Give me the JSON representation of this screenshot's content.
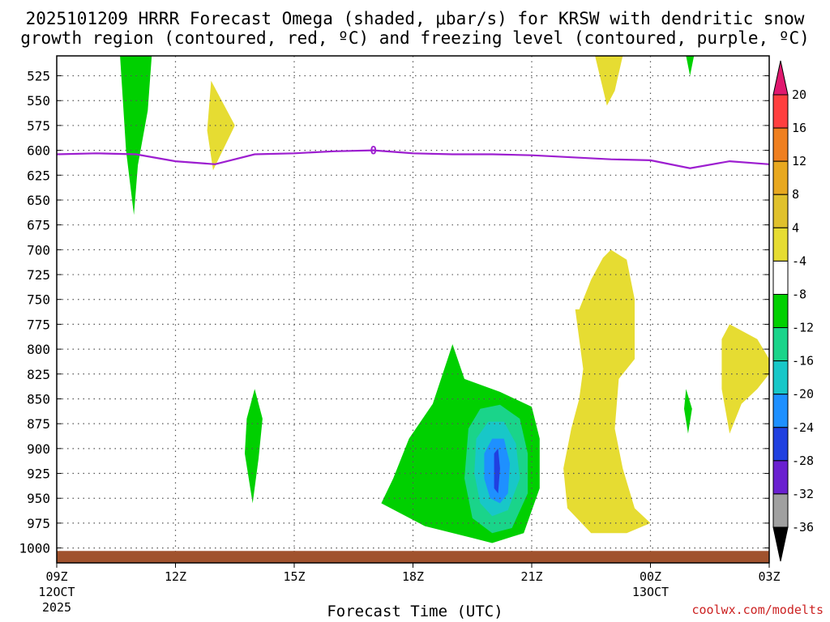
{
  "title": {
    "line1": "2025101209 HRRR Forecast Omega (shaded, μbar/s) for KRSW with dendritic snow",
    "line2": "growth region (contoured, red, ºC) and freezing level (contoured, purple, ºC)"
  },
  "x_axis_title": "Forecast Time (UTC)",
  "credit": "coolwx.com/modelts",
  "freezing_level_label": "0",
  "colors": {
    "freezing_line": "#9d1ed0",
    "ground": "#a0522d",
    "grid": "#555555"
  },
  "chart_data": {
    "type": "filled-contour",
    "title": "2025101209 HRRR Forecast Omega (shaded, μbar/s) for KRSW",
    "x_range_hours": [
      0,
      18
    ],
    "y_range_hpa": [
      505,
      1015
    ],
    "x_ticks": [
      {
        "hour": 0,
        "label": "09Z",
        "sub1": "12OCT",
        "sub2": "2025"
      },
      {
        "hour": 3,
        "label": "12Z",
        "sub1": "",
        "sub2": ""
      },
      {
        "hour": 6,
        "label": "15Z",
        "sub1": "",
        "sub2": ""
      },
      {
        "hour": 9,
        "label": "18Z",
        "sub1": "",
        "sub2": ""
      },
      {
        "hour": 12,
        "label": "21Z",
        "sub1": "",
        "sub2": ""
      },
      {
        "hour": 15,
        "label": "00Z",
        "sub1": "13OCT",
        "sub2": ""
      },
      {
        "hour": 18,
        "label": "03Z",
        "sub1": "",
        "sub2": ""
      }
    ],
    "y_ticks": [
      525,
      550,
      575,
      600,
      625,
      650,
      675,
      700,
      725,
      750,
      775,
      800,
      825,
      850,
      875,
      900,
      925,
      950,
      975,
      1000
    ],
    "colorbar": {
      "levels": [
        {
          "label": "20",
          "color": "#ff3f3f"
        },
        {
          "label": "16",
          "color": "#ef7f1f"
        },
        {
          "label": "12",
          "color": "#e8a81f"
        },
        {
          "label": "8",
          "color": "#e0c12c"
        },
        {
          "label": "4",
          "color": "#e6dc32"
        },
        {
          "label": "-4",
          "color": "#ffffff"
        },
        {
          "label": "-8",
          "color": "#00d000"
        },
        {
          "label": "-12",
          "color": "#1ad48a"
        },
        {
          "label": "-16",
          "color": "#18c7c8"
        },
        {
          "label": "-20",
          "color": "#1e90ff"
        },
        {
          "label": "-24",
          "color": "#2040e0"
        },
        {
          "label": "-28",
          "color": "#6a20d0"
        },
        {
          "label": "-32",
          "color": "#a010c0"
        },
        {
          "label": "-36",
          "color": "#a0a0a0"
        }
      ],
      "top_arrow_color": "#e0186e",
      "bottom_arrow_color": "#000000"
    },
    "freezing_level": {
      "label": "0",
      "points": [
        [
          0,
          604
        ],
        [
          1,
          603
        ],
        [
          2,
          604
        ],
        [
          3,
          611
        ],
        [
          4,
          614
        ],
        [
          5,
          604
        ],
        [
          6,
          603
        ],
        [
          7,
          601
        ],
        [
          8,
          600
        ],
        [
          9,
          603
        ],
        [
          10,
          604
        ],
        [
          11,
          604
        ],
        [
          12,
          605
        ],
        [
          13,
          607
        ],
        [
          14,
          609
        ],
        [
          15,
          610
        ],
        [
          16,
          618
        ],
        [
          17,
          611
        ],
        [
          18,
          614
        ]
      ]
    },
    "shaded_regions": [
      {
        "value_band": "-4 to -8",
        "color": "#00d000",
        "points": [
          [
            1.6,
            505
          ],
          [
            2.4,
            505
          ],
          [
            2.3,
            560
          ],
          [
            2.05,
            615
          ],
          [
            1.95,
            665
          ],
          [
            1.75,
            600
          ],
          [
            1.6,
            505
          ]
        ]
      },
      {
        "value_band": "4 to 8",
        "color": "#e6dc32",
        "points": [
          [
            3.9,
            530
          ],
          [
            4.5,
            575
          ],
          [
            3.95,
            620
          ],
          [
            3.8,
            580
          ],
          [
            3.9,
            530
          ]
        ]
      },
      {
        "value_band": "4 to 8",
        "color": "#e6dc32",
        "points": [
          [
            13.6,
            505
          ],
          [
            14.3,
            505
          ],
          [
            14.1,
            540
          ],
          [
            13.9,
            555
          ],
          [
            13.6,
            505
          ]
        ]
      },
      {
        "value_band": "-4 to -8",
        "color": "#00d000",
        "points": [
          [
            15.9,
            505
          ],
          [
            16.1,
            505
          ],
          [
            16.0,
            525
          ],
          [
            15.9,
            505
          ]
        ]
      },
      {
        "value_band": "-4 to -8",
        "color": "#00d000",
        "points": [
          [
            5.0,
            840
          ],
          [
            5.2,
            870
          ],
          [
            5.1,
            910
          ],
          [
            4.95,
            955
          ],
          [
            4.75,
            905
          ],
          [
            4.8,
            870
          ],
          [
            5.0,
            840
          ]
        ]
      },
      {
        "value_band": "-4 to -8",
        "color": "#00d000",
        "points": [
          [
            8.9,
            890
          ],
          [
            9.5,
            855
          ],
          [
            10.0,
            795
          ],
          [
            10.3,
            830
          ],
          [
            11.2,
            843
          ],
          [
            12.0,
            858
          ],
          [
            12.2,
            890
          ],
          [
            12.2,
            940
          ],
          [
            11.8,
            985
          ],
          [
            11.0,
            995
          ],
          [
            10.5,
            990
          ],
          [
            9.3,
            978
          ],
          [
            8.2,
            955
          ],
          [
            8.5,
            930
          ],
          [
            8.9,
            890
          ]
        ]
      },
      {
        "value_band": "-8 to -12",
        "color": "#1ad48a",
        "points": [
          [
            10.4,
            880
          ],
          [
            10.7,
            860
          ],
          [
            11.2,
            856
          ],
          [
            11.7,
            870
          ],
          [
            11.9,
            905
          ],
          [
            11.9,
            945
          ],
          [
            11.5,
            980
          ],
          [
            11.0,
            985
          ],
          [
            10.5,
            970
          ],
          [
            10.3,
            930
          ],
          [
            10.4,
            880
          ]
        ]
      },
      {
        "value_band": "-12 to -16",
        "color": "#18c7c8",
        "points": [
          [
            10.6,
            890
          ],
          [
            10.9,
            873
          ],
          [
            11.3,
            873
          ],
          [
            11.6,
            895
          ],
          [
            11.7,
            930
          ],
          [
            11.4,
            962
          ],
          [
            11.0,
            968
          ],
          [
            10.7,
            955
          ],
          [
            10.55,
            925
          ],
          [
            10.6,
            890
          ]
        ]
      },
      {
        "value_band": "-16 to -20",
        "color": "#1e90ff",
        "points": [
          [
            10.8,
            905
          ],
          [
            11.0,
            890
          ],
          [
            11.3,
            890
          ],
          [
            11.45,
            915
          ],
          [
            11.4,
            945
          ],
          [
            11.2,
            955
          ],
          [
            10.95,
            950
          ],
          [
            10.8,
            930
          ],
          [
            10.8,
            905
          ]
        ]
      },
      {
        "value_band": "-20 to -24",
        "color": "#2040e0",
        "points": [
          [
            11.05,
            905
          ],
          [
            11.15,
            900
          ],
          [
            11.2,
            920
          ],
          [
            11.15,
            945
          ],
          [
            11.05,
            940
          ],
          [
            11.05,
            905
          ]
        ]
      },
      {
        "value_band": "4 to 8",
        "color": "#e6dc32",
        "points": [
          [
            13.2,
            760
          ],
          [
            13.5,
            730
          ],
          [
            13.8,
            708
          ],
          [
            14.0,
            700
          ],
          [
            14.4,
            710
          ],
          [
            14.6,
            750
          ],
          [
            14.6,
            810
          ],
          [
            14.2,
            830
          ],
          [
            14.1,
            880
          ],
          [
            14.3,
            920
          ],
          [
            14.6,
            960
          ],
          [
            15.0,
            975
          ],
          [
            14.4,
            985
          ],
          [
            13.5,
            985
          ],
          [
            12.9,
            960
          ],
          [
            12.8,
            920
          ],
          [
            13.0,
            880
          ],
          [
            13.2,
            850
          ],
          [
            13.3,
            820
          ],
          [
            13.1,
            760
          ],
          [
            13.2,
            760
          ]
        ]
      },
      {
        "value_band": "-4 to -8",
        "color": "#00d000",
        "points": [
          [
            15.9,
            840
          ],
          [
            16.05,
            860
          ],
          [
            15.95,
            885
          ],
          [
            15.85,
            860
          ],
          [
            15.9,
            840
          ]
        ]
      },
      {
        "value_band": "4 to 8",
        "color": "#e6dc32",
        "points": [
          [
            17.0,
            775
          ],
          [
            17.7,
            790
          ],
          [
            18.0,
            810
          ],
          [
            18.0,
            825
          ],
          [
            17.7,
            840
          ],
          [
            17.3,
            855
          ],
          [
            17.0,
            885
          ],
          [
            16.8,
            840
          ],
          [
            16.8,
            790
          ],
          [
            17.0,
            775
          ]
        ]
      }
    ]
  }
}
